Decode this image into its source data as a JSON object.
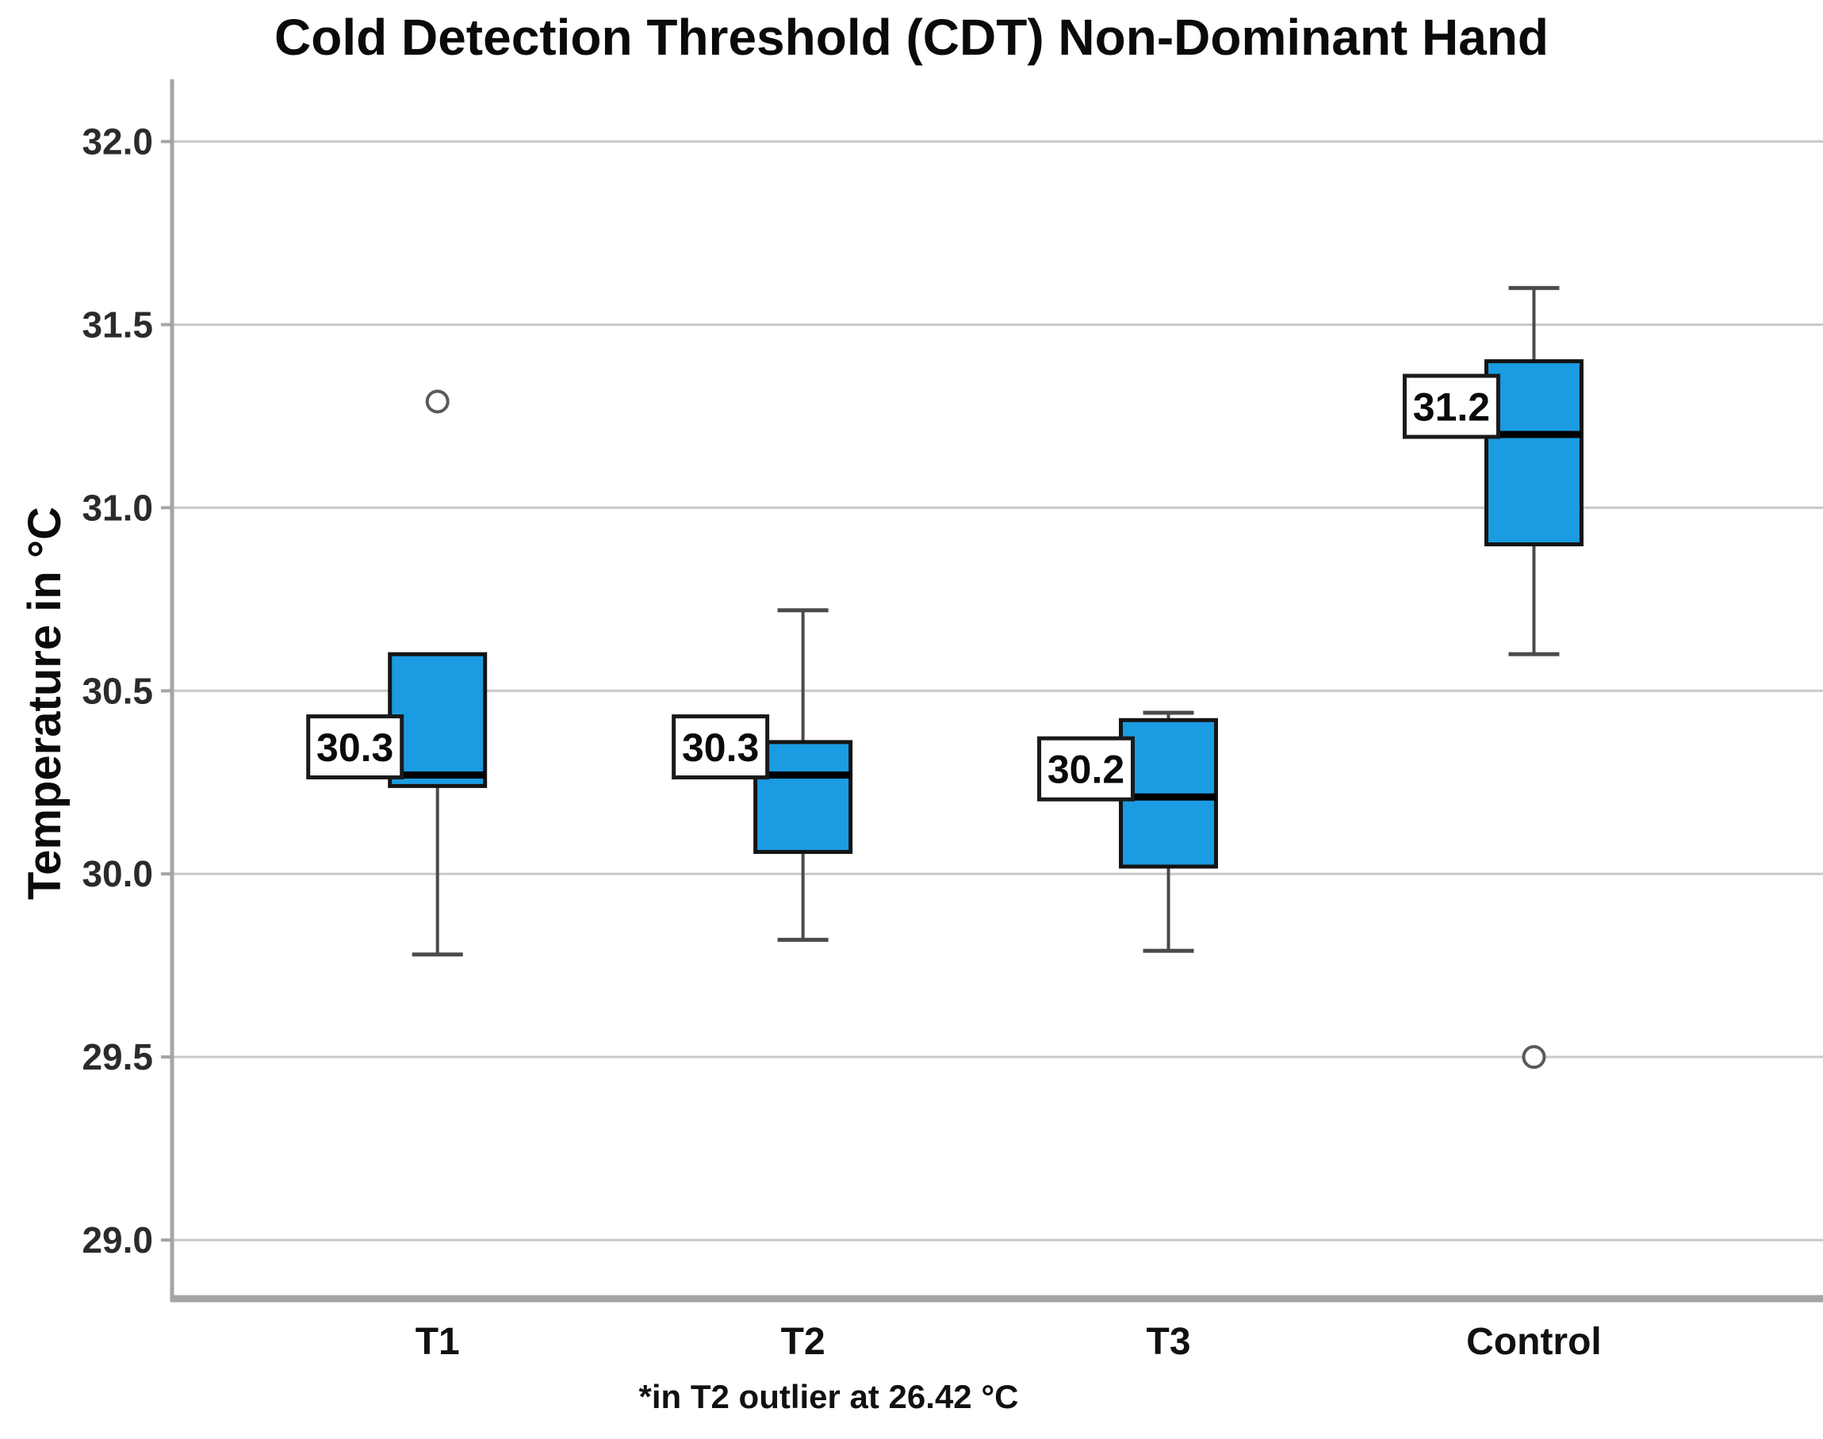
{
  "title": "Cold Detection Threshold (CDT) Non-Dominant Hand",
  "footnote": "*in T2 outlier at 26.42 °C",
  "chart_data": {
    "type": "boxplot",
    "title": "Cold Detection Threshold (CDT) Non-Dominant Hand",
    "xlabel": "",
    "ylabel": "Temperature in °C",
    "ylim": [
      28.84,
      32.17
    ],
    "yticks": [
      32.0,
      31.5,
      31.0,
      30.5,
      30.0,
      29.5,
      29.0
    ],
    "ytick_labels": [
      "32.0",
      "31.5",
      "31.0",
      "30.5",
      "30.0",
      "29.5",
      "29.0"
    ],
    "grid": true,
    "legend": "none",
    "categories": [
      "T1",
      "T2",
      "T3",
      "Control"
    ],
    "series": [
      {
        "name": "T1",
        "whisker_low": 29.78,
        "q1": 30.24,
        "median": 30.27,
        "q3": 30.6,
        "whisker_high": null,
        "outliers": [
          31.29
        ],
        "median_label": "30.3"
      },
      {
        "name": "T2",
        "whisker_low": 29.82,
        "q1": 30.06,
        "median": 30.27,
        "q3": 30.36,
        "whisker_high": 30.72,
        "outliers": [],
        "median_label": "30.3"
      },
      {
        "name": "T3",
        "whisker_low": 29.79,
        "q1": 30.02,
        "median": 30.21,
        "q3": 30.42,
        "whisker_high": 30.44,
        "outliers": [],
        "median_label": "30.2"
      },
      {
        "name": "Control",
        "whisker_low": 30.6,
        "q1": 30.9,
        "median": 31.2,
        "q3": 31.4,
        "whisker_high": 31.6,
        "outliers": [
          29.5
        ],
        "median_label": "31.2"
      }
    ],
    "annotations": [
      "*in T2 outlier at 26.42 °C"
    ],
    "colors": {
      "box_fill": "#1b9ce2",
      "box_border": "#141414",
      "median_line": "#000000",
      "whisker": "#4a4a4a",
      "gridline": "#c9c9c9",
      "axis_line": "#a5a5a5",
      "outlier_stroke": "#5a5a5a",
      "tick_text": "#2b2b2b",
      "label_box_bg": "#ffffff",
      "label_box_border": "#1a1a1a"
    }
  }
}
